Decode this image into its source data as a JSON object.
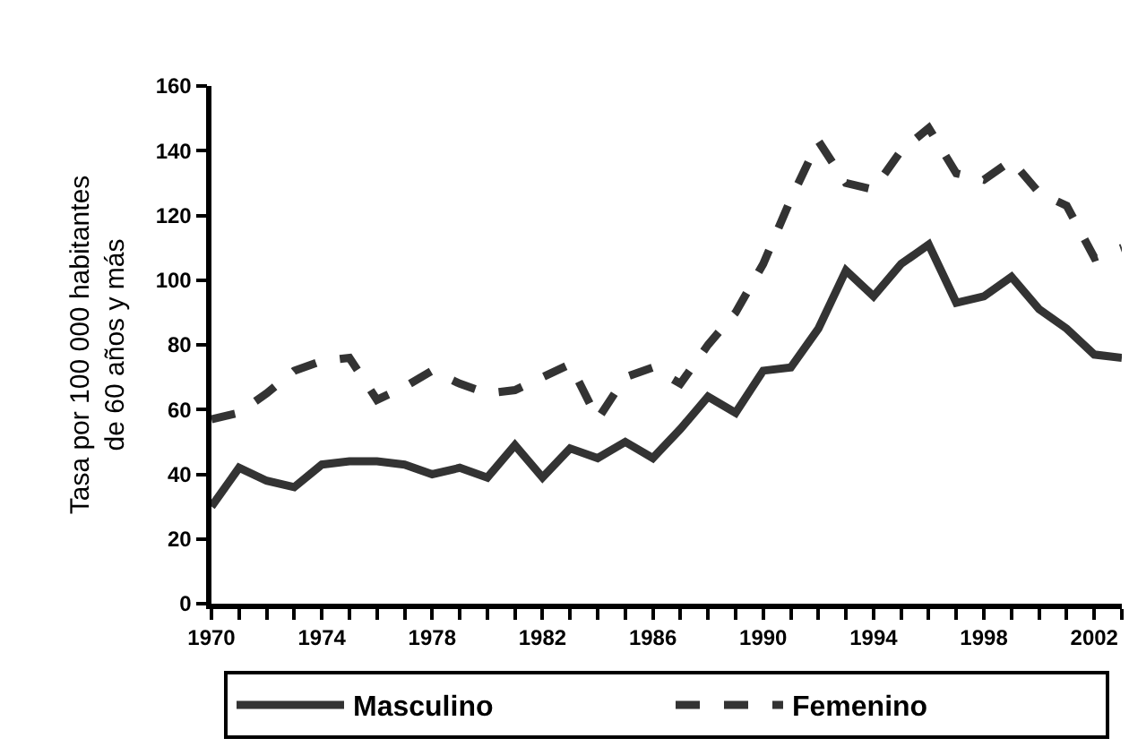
{
  "chart_data": {
    "type": "line",
    "ylabel": "Tasa por 100 000 habitantes\nde 60 años y más",
    "x": [
      1970,
      1971,
      1972,
      1973,
      1974,
      1975,
      1976,
      1977,
      1978,
      1979,
      1980,
      1981,
      1982,
      1983,
      1984,
      1985,
      1986,
      1987,
      1988,
      1989,
      1990,
      1991,
      1992,
      1993,
      1994,
      1995,
      1996,
      1997,
      1998,
      1999,
      2000,
      2001,
      2002,
      2003
    ],
    "series": [
      {
        "name": "Masculino",
        "color": "#333333",
        "line_style": "solid",
        "values": [
          30,
          42,
          38,
          36,
          43,
          44,
          44,
          43,
          40,
          42,
          39,
          49,
          39,
          48,
          45,
          50,
          45,
          54,
          64,
          59,
          72,
          73,
          85,
          103,
          95,
          105,
          111,
          93,
          95,
          101,
          91,
          85,
          77,
          76
        ]
      },
      {
        "name": "Femenino",
        "color": "#333333",
        "line_style": "dashed",
        "values": [
          57,
          59,
          65,
          72,
          75,
          76,
          63,
          67,
          72,
          68,
          65,
          66,
          70,
          74,
          57,
          70,
          73,
          68,
          80,
          90,
          105,
          125,
          143,
          130,
          128,
          140,
          147,
          133,
          131,
          137,
          127,
          123,
          107,
          110
        ]
      }
    ],
    "xlim": [
      1970,
      2003
    ],
    "xticks": [
      1970,
      {
        "value": 1971,
        "label": null
      },
      {
        "value": 1972,
        "label": null
      },
      {
        "value": 1973,
        "label": null
      },
      1974,
      {
        "value": 1975,
        "label": null
      },
      {
        "value": 1976,
        "label": null
      },
      {
        "value": 1977,
        "label": null
      },
      1978,
      {
        "value": 1979,
        "label": null
      },
      {
        "value": 1980,
        "label": null
      },
      {
        "value": 1981,
        "label": null
      },
      1982,
      {
        "value": 1983,
        "label": null
      },
      {
        "value": 1984,
        "label": null
      },
      {
        "value": 1985,
        "label": null
      },
      1986,
      {
        "value": 1987,
        "label": null
      },
      {
        "value": 1988,
        "label": null
      },
      {
        "value": 1989,
        "label": null
      },
      1990,
      {
        "value": 1991,
        "label": null
      },
      {
        "value": 1992,
        "label": null
      },
      {
        "value": 1993,
        "label": null
      },
      1994,
      {
        "value": 1995,
        "label": null
      },
      {
        "value": 1996,
        "label": null
      },
      {
        "value": 1997,
        "label": null
      },
      1998,
      {
        "value": 1999,
        "label": null
      },
      {
        "value": 2000,
        "label": null
      },
      {
        "value": 2001,
        "label": null
      },
      2002,
      {
        "value": 2003,
        "label": null
      }
    ],
    "ylim": [
      0,
      160
    ],
    "yticks": [
      0,
      20,
      40,
      60,
      80,
      100,
      120,
      140,
      160
    ],
    "grid": false,
    "legend": "bottom",
    "marker": "none"
  }
}
